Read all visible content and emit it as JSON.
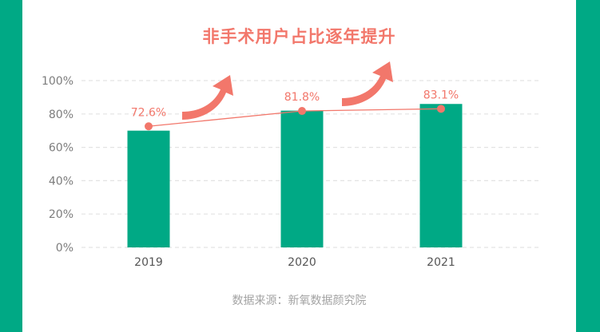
{
  "title": "非手术用户占比逐年提升",
  "source": "数据来源：新氧数据颜究院",
  "colors": {
    "background_band": "#00A985",
    "bar": "#00A985",
    "accent": "#F2776B",
    "grid": "#E3E3E3"
  },
  "chart_data": {
    "type": "bar",
    "title": "非手术用户占比逐年提升",
    "categories": [
      "2019",
      "2020",
      "2021"
    ],
    "series": [
      {
        "values": [
          70,
          82,
          86
        ]
      }
    ],
    "overlay_line": {
      "values": [
        72.6,
        81.8,
        83.1
      ],
      "labels": [
        "72.6%",
        "81.8%",
        "83.1%"
      ],
      "color": "#F2776B"
    },
    "ylim": [
      0,
      100
    ],
    "yticks": [
      "0%",
      "20%",
      "40%",
      "60%",
      "80%",
      "100%"
    ],
    "ytick_values": [
      0,
      20,
      40,
      60,
      80,
      100
    ],
    "grid": true,
    "trend_arrows": 2,
    "xlabel": "",
    "ylabel": ""
  }
}
